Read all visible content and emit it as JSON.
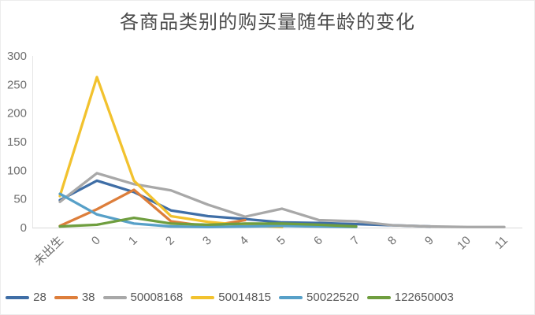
{
  "chart_data": {
    "type": "line",
    "title": "各商品类别的购买量随年龄的变化",
    "categories": [
      "未出生",
      "0",
      "1",
      "2",
      "3",
      "4",
      "5",
      "6",
      "7",
      "8",
      "9",
      "10",
      "11"
    ],
    "series": [
      {
        "name": "28",
        "color": "#3f6ea6",
        "values": [
          48,
          82,
          62,
          30,
          20,
          15,
          9,
          8,
          6,
          4,
          2,
          null,
          null
        ]
      },
      {
        "name": "38",
        "color": "#dd7e3b",
        "values": [
          3,
          32,
          66,
          11,
          2,
          13,
          null,
          null,
          null,
          null,
          null,
          null,
          null
        ]
      },
      {
        "name": "50008168",
        "color": "#a8a8a8",
        "values": [
          45,
          95,
          76,
          65,
          40,
          19,
          33,
          13,
          11,
          4,
          2,
          1,
          1
        ]
      },
      {
        "name": "50014815",
        "color": "#f2c22e",
        "values": [
          55,
          263,
          82,
          20,
          10,
          4,
          1,
          null,
          null,
          null,
          null,
          null,
          null
        ]
      },
      {
        "name": "50022520",
        "color": "#57a0c8",
        "values": [
          59,
          23,
          7,
          2,
          1,
          2,
          3,
          2,
          1,
          null,
          null,
          null,
          null
        ]
      },
      {
        "name": "122650003",
        "color": "#6f9e3f",
        "values": [
          2,
          5,
          17,
          7,
          5,
          7,
          7,
          5,
          2,
          null,
          null,
          null,
          null
        ]
      }
    ],
    "xlabel": "",
    "ylabel": "",
    "ylim": [
      0,
      300
    ],
    "yticks": [
      0,
      50,
      100,
      150,
      200,
      250,
      300
    ],
    "grid": false,
    "legend_position": "bottom",
    "x_label_rotation": -45
  },
  "style": {
    "title_color": "#4a4a4a",
    "axis_label_color": "#6e6e6e",
    "legend_label_color": "#595959",
    "axis_line_color": "#d9d9d9"
  }
}
